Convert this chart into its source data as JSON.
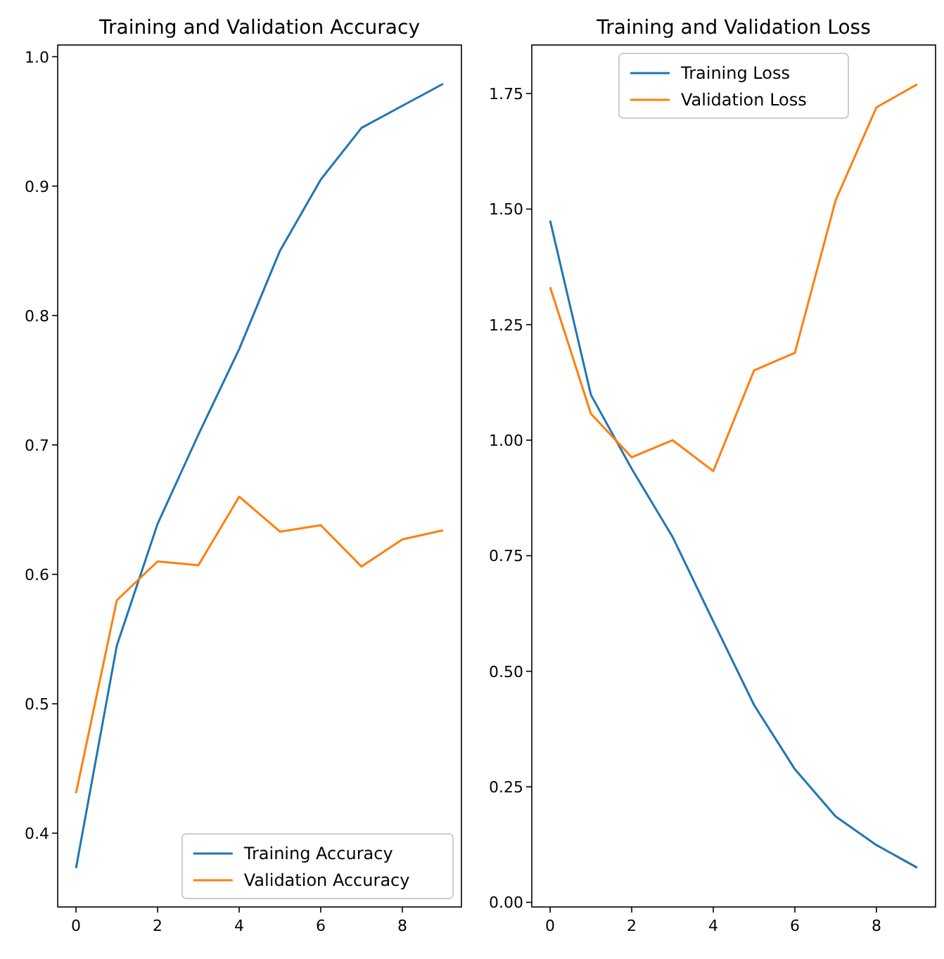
{
  "chart_data": [
    {
      "type": "line",
      "title": "Training and Validation Accuracy",
      "x": [
        0,
        1,
        2,
        3,
        4,
        5,
        6,
        7,
        8,
        9
      ],
      "series": [
        {
          "name": "Training Accuracy",
          "color": "#1f77b4",
          "values": [
            0.373,
            0.545,
            0.639,
            0.708,
            0.774,
            0.85,
            0.905,
            0.945,
            0.962,
            0.979
          ]
        },
        {
          "name": "Validation Accuracy",
          "color": "#ff7f0e",
          "values": [
            0.431,
            0.58,
            0.61,
            0.607,
            0.66,
            0.633,
            0.638,
            0.606,
            0.627,
            0.634
          ]
        }
      ],
      "xlim": [
        -0.45,
        9.45
      ],
      "xticks": [
        0,
        2,
        4,
        6,
        8
      ],
      "ylim": [
        0.343,
        1.009
      ],
      "yticks": [
        0.4,
        0.5,
        0.6,
        0.7,
        0.8,
        0.9,
        {
          "value": 1.0,
          "label": "1.0"
        }
      ],
      "legend": "bottom right",
      "grid": false,
      "marker": "none",
      "line_style": "solid"
    },
    {
      "type": "line",
      "title": "Training and Validation Loss",
      "x": [
        0,
        1,
        2,
        3,
        4,
        5,
        6,
        7,
        8,
        9
      ],
      "series": [
        {
          "name": "Training Loss",
          "color": "#1f77b4",
          "values": [
            1.475,
            1.098,
            0.938,
            0.791,
            0.608,
            0.427,
            0.288,
            0.186,
            0.124,
            0.075
          ]
        },
        {
          "name": "Validation Loss",
          "color": "#ff7f0e",
          "values": [
            1.331,
            1.057,
            0.963,
            1.0,
            0.933,
            1.151,
            1.189,
            1.519,
            1.72,
            1.77
          ]
        }
      ],
      "xlim": [
        -0.45,
        9.45
      ],
      "xticks": [
        0,
        2,
        4,
        6,
        8
      ],
      "ylim": [
        -0.01,
        1.855
      ],
      "yticks": [
        {
          "value": 0,
          "label": "0.00"
        },
        0.25,
        {
          "value": 0.5,
          "label": "0.50"
        },
        0.75,
        {
          "value": 1,
          "label": "1.00"
        },
        1.25,
        {
          "value": 1.5,
          "label": "1.50"
        },
        1.75
      ],
      "legend": "top",
      "grid": false,
      "marker": "none",
      "line_style": "solid"
    }
  ]
}
